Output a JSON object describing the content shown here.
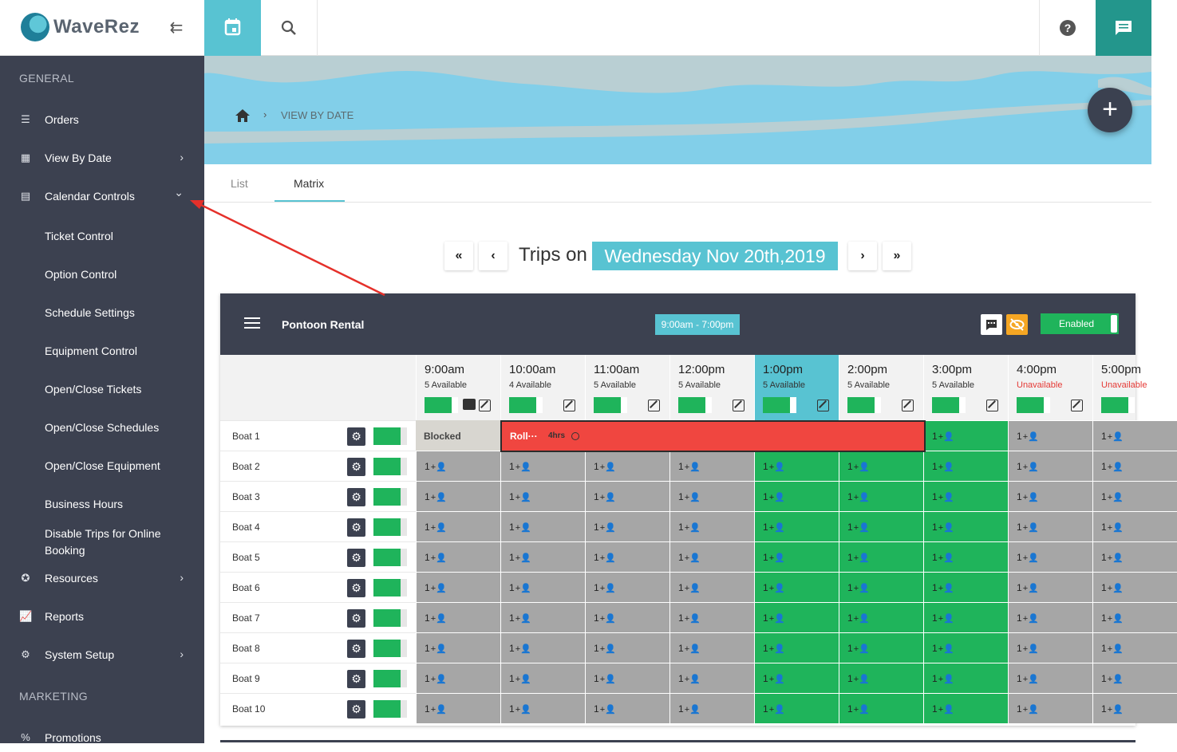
{
  "app": {
    "logo_text": "WaveRez"
  },
  "sidebar": {
    "section_general": "GENERAL",
    "section_marketing": "MARKETING",
    "items": [
      {
        "label": "Orders",
        "icon": "list-icon"
      },
      {
        "label": "View By Date",
        "icon": "dashboard-icon",
        "chevron": "›"
      },
      {
        "label": "Calendar Controls",
        "icon": "calendar-controls-icon",
        "chevron": "⌄"
      },
      {
        "label": "Resources",
        "icon": "star-badge-icon",
        "chevron": "›"
      },
      {
        "label": "Reports",
        "icon": "chart-icon"
      },
      {
        "label": "System Setup",
        "icon": "gear-icon",
        "chevron": "›"
      },
      {
        "label": "Promotions",
        "icon": "percent-icon"
      }
    ],
    "subitems": [
      "Ticket Control",
      "Option Control",
      "Schedule Settings",
      "Equipment Control",
      "Open/Close Tickets",
      "Open/Close Schedules",
      "Open/Close Equipment",
      "Business Hours",
      "Disable Trips for Online Booking"
    ]
  },
  "breadcrumb": {
    "current": "VIEW BY DATE"
  },
  "tabs": [
    {
      "label": "List"
    },
    {
      "label": "Matrix",
      "active": true
    }
  ],
  "date_nav": {
    "prefix": "Trips on",
    "date": "Wednesday Nov 20th,2019"
  },
  "matrix": {
    "title": "Pontoon Rental",
    "hours": "9:00am - 7:00pm",
    "enabled_label": "Enabled",
    "columns": [
      {
        "time": "9:00am",
        "avail": "5 Available"
      },
      {
        "time": "10:00am",
        "avail": "4 Available"
      },
      {
        "time": "11:00am",
        "avail": "5 Available"
      },
      {
        "time": "12:00pm",
        "avail": "5 Available"
      },
      {
        "time": "1:00pm",
        "avail": "5 Available"
      },
      {
        "time": "2:00pm",
        "avail": "5 Available"
      },
      {
        "time": "3:00pm",
        "avail": "5 Available"
      },
      {
        "time": "4:00pm",
        "avail": "Unavailable"
      },
      {
        "time": "5:00pm",
        "avail": "Unavailable"
      }
    ],
    "rows": [
      "Boat 1",
      "Boat 2",
      "Boat 3",
      "Boat 4",
      "Boat 5",
      "Boat 6",
      "Boat 7",
      "Boat 8",
      "Boat 9",
      "Boat 10"
    ],
    "cell_label": "1",
    "blocked_label": "Blocked",
    "booking": {
      "name": "Roll···",
      "duration": "4hrs"
    }
  },
  "colors": {
    "accent": "#58c3d2",
    "sidebar": "#3c4150",
    "green": "#1fb45b",
    "gray_cell": "#a6a6a6",
    "booking_red": "#f04640",
    "chat_teal": "#23968c",
    "hide_orange": "#f5a623"
  }
}
